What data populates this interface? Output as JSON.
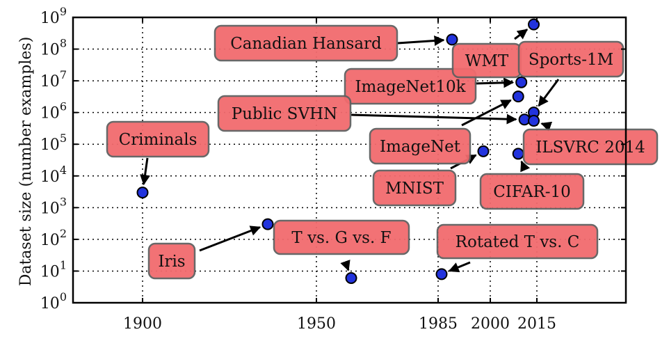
{
  "chart_data": {
    "type": "scatter",
    "xlabel": "",
    "ylabel": "Dataset size (number examples)",
    "x_ticks": [
      "1900",
      "1950",
      "1985",
      "2000",
      "2015"
    ],
    "y_ticks": [
      {
        "base": "10",
        "exp": "0"
      },
      {
        "base": "10",
        "exp": "1"
      },
      {
        "base": "10",
        "exp": "2"
      },
      {
        "base": "10",
        "exp": "3"
      },
      {
        "base": "10",
        "exp": "4"
      },
      {
        "base": "10",
        "exp": "5"
      },
      {
        "base": "10",
        "exp": "6"
      },
      {
        "base": "10",
        "exp": "7"
      },
      {
        "base": "10",
        "exp": "8"
      },
      {
        "base": "10",
        "exp": "9"
      }
    ],
    "y_scale": "log",
    "ylim": [
      1,
      1000000000
    ],
    "grid": true,
    "points": [
      {
        "name": "Criminals",
        "x": 1900,
        "y": 3000
      },
      {
        "name": "Iris",
        "x": 1936,
        "y": 300
      },
      {
        "name": "T vs. G vs. F",
        "x": 1960,
        "y": 6
      },
      {
        "name": "Rotated T vs. C",
        "x": 1986,
        "y": 8
      },
      {
        "name": "Canadian Hansard",
        "x": 1989,
        "y": 200000000
      },
      {
        "name": "MNIST",
        "x": 1998,
        "y": 60000
      },
      {
        "name": "CIFAR-10",
        "x": 2009,
        "y": 50000
      },
      {
        "name": "ImageNet",
        "x": 2009,
        "y": 3200000
      },
      {
        "name": "ImageNet10k",
        "x": 2010,
        "y": 9000000
      },
      {
        "name": "Public SVHN",
        "x": 2011,
        "y": 600000
      },
      {
        "name": "WMT",
        "x": 2014,
        "y": 600000000
      },
      {
        "name": "Sports-1M",
        "x": 2014,
        "y": 1000000
      },
      {
        "name": "ILSVRC 2014",
        "x": 2014,
        "y": 550000
      }
    ]
  }
}
